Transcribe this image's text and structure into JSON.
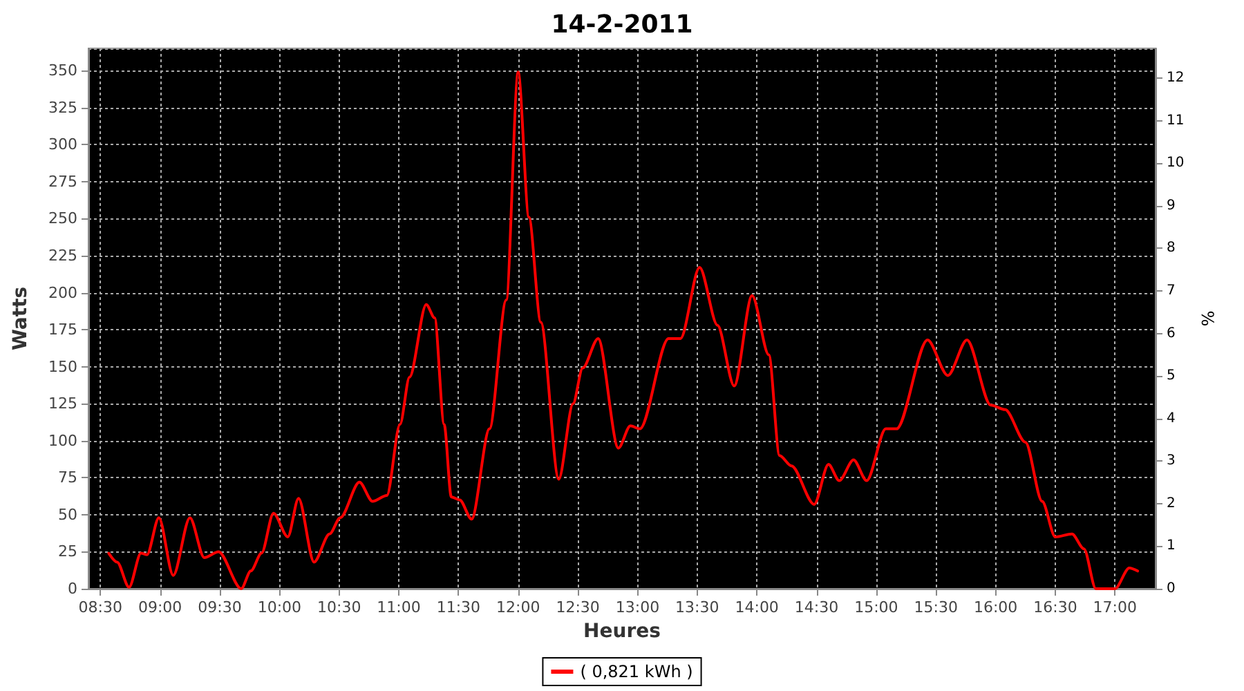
{
  "chart_data": {
    "type": "line",
    "title": "14-2-2011",
    "xlabel": "Heures",
    "ylabel": "Watts",
    "y2label": "%",
    "xlim": [
      8.4,
      17.34
    ],
    "xticks": [
      {
        "value": 8.5,
        "label": "08:30"
      },
      {
        "value": 9,
        "label": "09:00"
      },
      {
        "value": 9.5,
        "label": "09:30"
      },
      {
        "value": 10,
        "label": "10:00"
      },
      {
        "value": 10.5,
        "label": "10:30"
      },
      {
        "value": 11,
        "label": "11:00"
      },
      {
        "value": 11.5,
        "label": "11:30"
      },
      {
        "value": 12,
        "label": "12:00"
      },
      {
        "value": 12.5,
        "label": "12:30"
      },
      {
        "value": 13,
        "label": "13:00"
      },
      {
        "value": 13.5,
        "label": "13:30"
      },
      {
        "value": 14,
        "label": "14:00"
      },
      {
        "value": 14.5,
        "label": "14:30"
      },
      {
        "value": 15,
        "label": "15:00"
      },
      {
        "value": 15.5,
        "label": "15:30"
      },
      {
        "value": 16,
        "label": "16:00"
      },
      {
        "value": 16.5,
        "label": "16:30"
      },
      {
        "value": 17,
        "label": "17:00"
      }
    ],
    "ylim": [
      0,
      365
    ],
    "yticks": [
      0,
      25,
      50,
      75,
      100,
      125,
      150,
      175,
      200,
      225,
      250,
      275,
      300,
      325,
      350
    ],
    "y2lim": [
      0,
      12.7
    ],
    "y2ticks": [
      0,
      1,
      2,
      3,
      4,
      5,
      6,
      7,
      8,
      9,
      10,
      11,
      12
    ],
    "grid": true,
    "legend": "bottom",
    "marker": "none",
    "line_style": "solid",
    "series": [
      {
        "name": "( 0,821 kWh )",
        "color": "#ff0000",
        "x": [
          8.57,
          8.64,
          8.74,
          8.84,
          8.89,
          8.99,
          9.11,
          9.25,
          9.37,
          9.49,
          9.68,
          9.76,
          9.85,
          9.95,
          10.07,
          10.16,
          10.29,
          10.42,
          10.51,
          10.67,
          10.78,
          10.9,
          11.01,
          11.09,
          11.23,
          11.3,
          11.38,
          11.44,
          11.51,
          11.61,
          11.76,
          11.9,
          12.0,
          12.09,
          12.19,
          12.34,
          12.46,
          12.54,
          12.67,
          12.84,
          12.94,
          13.02,
          13.26,
          13.36,
          13.52,
          13.67,
          13.81,
          13.96,
          14.1,
          14.19,
          14.29,
          14.48,
          14.6,
          14.69,
          14.81,
          14.92,
          15.08,
          15.17,
          15.43,
          15.6,
          15.76,
          15.96,
          16.08,
          16.25,
          16.39,
          16.5,
          16.64,
          16.74,
          16.84,
          17.0,
          17.12,
          17.19
        ],
        "values": [
          24,
          18,
          1,
          24,
          23,
          48,
          9,
          48,
          21,
          25,
          0,
          12,
          24,
          51,
          35,
          61,
          18,
          37,
          48,
          72,
          59,
          63,
          111,
          143,
          192,
          183,
          111,
          62,
          60,
          47,
          108,
          195,
          349,
          251,
          180,
          74,
          125,
          149,
          169,
          95,
          110,
          108,
          169,
          169,
          217,
          178,
          137,
          198,
          158,
          90,
          83,
          57,
          84,
          73,
          87,
          73,
          108,
          108,
          168,
          144,
          168,
          124,
          121,
          99,
          59,
          35,
          37,
          27,
          0,
          0,
          14,
          12
        ]
      }
    ]
  }
}
